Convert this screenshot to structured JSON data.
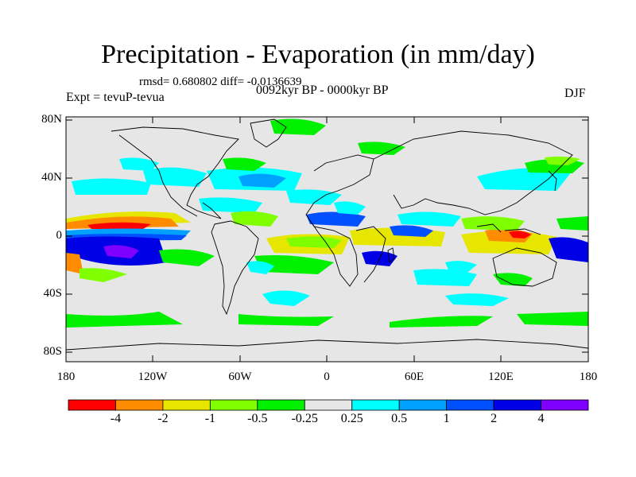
{
  "title": "Precipitation - Evaporation (in mm/day)",
  "stats": "rmsd= 0.680802 diff= -0.0136639",
  "period": "0092kyr BP - 0000kyr BP",
  "experiment": "Expt = tevuP-tevua",
  "season": "DJF",
  "lat_labels": [
    "80N",
    "40N",
    "0",
    "40S",
    "80S"
  ],
  "lon_labels": [
    "180",
    "120W",
    "60W",
    "0",
    "60E",
    "120E",
    "180"
  ],
  "colorbar": {
    "labels": [
      "-4",
      "-2",
      "-1",
      "-0.5",
      "-0.25",
      "0.25",
      "0.5",
      "1",
      "2",
      "4"
    ],
    "colors": [
      "#ff0000",
      "#ff8c00",
      "#e6e600",
      "#80ff00",
      "#00f000",
      "#e6e6e6",
      "#00ffff",
      "#00a0ff",
      "#0050ff",
      "#0000e6",
      "#8000ff"
    ]
  }
}
